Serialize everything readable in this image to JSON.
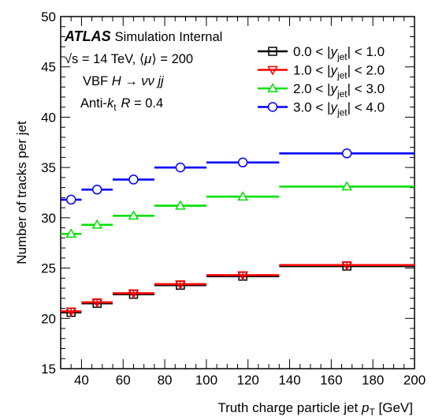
{
  "chart_data": {
    "type": "line",
    "plot_style": "histogram-steps-with-markers",
    "xlabel": "Truth charge particle jet p_T [GeV]",
    "ylabel": "Number of tracks per jet",
    "xlim": [
      30,
      200
    ],
    "ylim": [
      15,
      50
    ],
    "xticks": [
      40,
      60,
      80,
      100,
      120,
      140,
      160,
      180,
      200
    ],
    "yticks": [
      15,
      20,
      25,
      30,
      35,
      40,
      45,
      50
    ],
    "bin_edges": [
      30,
      40,
      55,
      75,
      100,
      135,
      200
    ],
    "bin_centers": [
      35,
      47.5,
      65,
      87.5,
      117.5,
      167.5
    ],
    "annotations": {
      "experiment": "ATLAS",
      "status": "Simulation Internal",
      "energy": "√s = 14 TeV, ⟨μ⟩ = 200",
      "process": "VBF H → ννjj",
      "algorithm": "Anti-kt  R = 0.4"
    },
    "legend_position": "top-right",
    "series": [
      {
        "name": "0.0 < |y_jet| < 1.0",
        "color": "#000000",
        "marker": "square",
        "values": [
          20.6,
          21.5,
          22.4,
          23.3,
          24.2,
          25.2
        ]
      },
      {
        "name": "1.0 < |y_jet| < 2.0",
        "color": "#ff0000",
        "marker": "triangle-down",
        "values": [
          20.7,
          21.6,
          22.5,
          23.4,
          24.3,
          25.3
        ]
      },
      {
        "name": "2.0 < |y_jet| < 3.0",
        "color": "#00e000",
        "marker": "triangle-up",
        "values": [
          28.4,
          29.3,
          30.2,
          31.2,
          32.1,
          33.1
        ]
      },
      {
        "name": "3.0 < |y_jet| < 4.0",
        "color": "#0000ff",
        "marker": "circle",
        "values": [
          31.8,
          32.8,
          33.8,
          35.0,
          35.5,
          36.4
        ]
      }
    ]
  }
}
